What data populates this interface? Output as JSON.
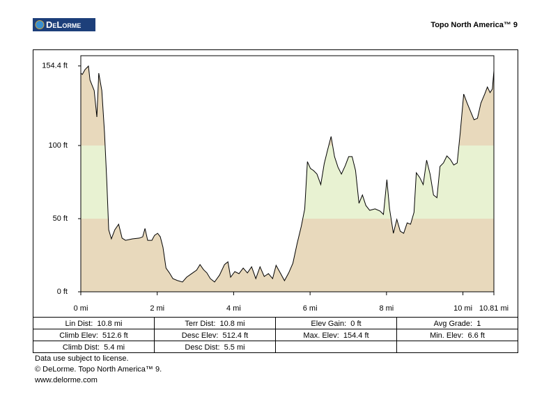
{
  "header": {
    "logo": "DeLorme",
    "title": "Topo North America™ 9"
  },
  "chart_data": {
    "type": "area",
    "x": [
      0,
      0.04,
      0.11,
      0.2,
      0.24,
      0.35,
      0.42,
      0.47,
      0.55,
      0.62,
      0.68,
      0.73,
      0.8,
      0.89,
      0.99,
      1.08,
      1.17,
      1.35,
      1.53,
      1.62,
      1.68,
      1.75,
      1.86,
      1.93,
      2.01,
      2.08,
      2.15,
      2.23,
      2.32,
      2.41,
      2.54,
      2.66,
      2.77,
      2.9,
      3.03,
      3.12,
      3.21,
      3.3,
      3.39,
      3.5,
      3.63,
      3.76,
      3.85,
      3.92,
      4.03,
      4.14,
      4.25,
      4.36,
      4.47,
      4.58,
      4.69,
      4.8,
      4.91,
      5.02,
      5.11,
      5.22,
      5.33,
      5.44,
      5.55,
      5.66,
      5.77,
      5.86,
      5.93,
      6.01,
      6.09,
      6.18,
      6.28,
      6.37,
      6.46,
      6.55,
      6.64,
      6.73,
      6.82,
      6.92,
      7.01,
      7.1,
      7.19,
      7.28,
      7.37,
      7.46,
      7.56,
      7.7,
      7.83,
      7.92,
      8.01,
      8.08,
      8.18,
      8.27,
      8.36,
      8.45,
      8.54,
      8.63,
      8.72,
      8.78,
      8.87,
      8.96,
      9.05,
      9.14,
      9.23,
      9.32,
      9.4,
      9.49,
      9.58,
      9.67,
      9.76,
      9.85,
      9.93,
      10.02,
      10.11,
      10.2,
      10.29,
      10.38,
      10.47,
      10.57,
      10.64,
      10.71,
      10.77,
      10.81
    ],
    "series": [
      {
        "name": "Elevation",
        "color": "#000000",
        "values": [
          149.5,
          148.6,
          151.9,
          154.3,
          144.8,
          137.6,
          119.5,
          149.5,
          137.6,
          109,
          75.7,
          42.4,
          36.2,
          42.4,
          46.2,
          36.7,
          35.2,
          36.2,
          36.7,
          37.6,
          43.3,
          35.2,
          35.2,
          38.6,
          40,
          37.6,
          30.5,
          16.2,
          12.9,
          9,
          7.6,
          6.7,
          10,
          12.4,
          14.8,
          18.6,
          15.2,
          12.9,
          9,
          6.7,
          11.4,
          18.6,
          20.5,
          10,
          13.8,
          12.4,
          16.2,
          12.9,
          17.1,
          9,
          17.1,
          10.5,
          12.4,
          9,
          18.1,
          12.9,
          7.6,
          12.9,
          19.5,
          32.9,
          44.8,
          56.7,
          89,
          84.3,
          82.9,
          80.5,
          73.3,
          87.6,
          97.1,
          106.2,
          92.4,
          85.2,
          80.5,
          86.2,
          92.4,
          92.4,
          82.9,
          60.5,
          66.2,
          59,
          55.7,
          56.7,
          55.2,
          52.9,
          76.7,
          56.7,
          40,
          49.5,
          41.4,
          40,
          47.1,
          46.2,
          54.3,
          81.4,
          78.1,
          73.3,
          90,
          80.5,
          66.2,
          64.3,
          85.7,
          88.1,
          92.9,
          90.5,
          86.7,
          88.1,
          109,
          135.2,
          129,
          123.3,
          117.6,
          118.6,
          129,
          135.2,
          140,
          136.2,
          138.6,
          151
        ]
      }
    ],
    "xlim": [
      0,
      10.81
    ],
    "ylim": [
      0,
      161.4
    ],
    "xticks": [
      {
        "value": 0,
        "label": "0 mi"
      },
      {
        "value": 2,
        "label": "2 mi"
      },
      {
        "value": 4,
        "label": "4 mi"
      },
      {
        "value": 6,
        "label": "6 mi"
      },
      {
        "value": 8,
        "label": "8 mi"
      },
      {
        "value": 10,
        "label": "10 mi"
      },
      {
        "value": 10.81,
        "label": "10.81 mi"
      }
    ],
    "yticks": [
      {
        "value": 0,
        "label": "0 ft"
      },
      {
        "value": 50,
        "label": "50 ft"
      },
      {
        "value": 100,
        "label": "100 ft"
      },
      {
        "value": 154.4,
        "label": "154.4 ft"
      }
    ],
    "band_colors": [
      "#e8d9bc",
      "#e8f2d2",
      "#e8d9bc"
    ]
  },
  "table": {
    "rows": [
      [
        "Lin Dist:  10.8 mi",
        "Terr Dist:  10.8 mi",
        "Elev Gain:  0 ft",
        "Avg Grade:  1"
      ],
      [
        "Climb Elev:  512.6 ft",
        "Desc Elev:  512.4 ft",
        "Max. Elev:  154.4 ft",
        "Min. Elev:  6.6 ft"
      ],
      [
        "Climb Dist:  5.4 mi",
        "Desc Dist:  5.5 mi"
      ]
    ]
  },
  "footer": [
    "Data use subject to license.",
    "© DeLorme. Topo North America™ 9.",
    "www.delorme.com"
  ]
}
